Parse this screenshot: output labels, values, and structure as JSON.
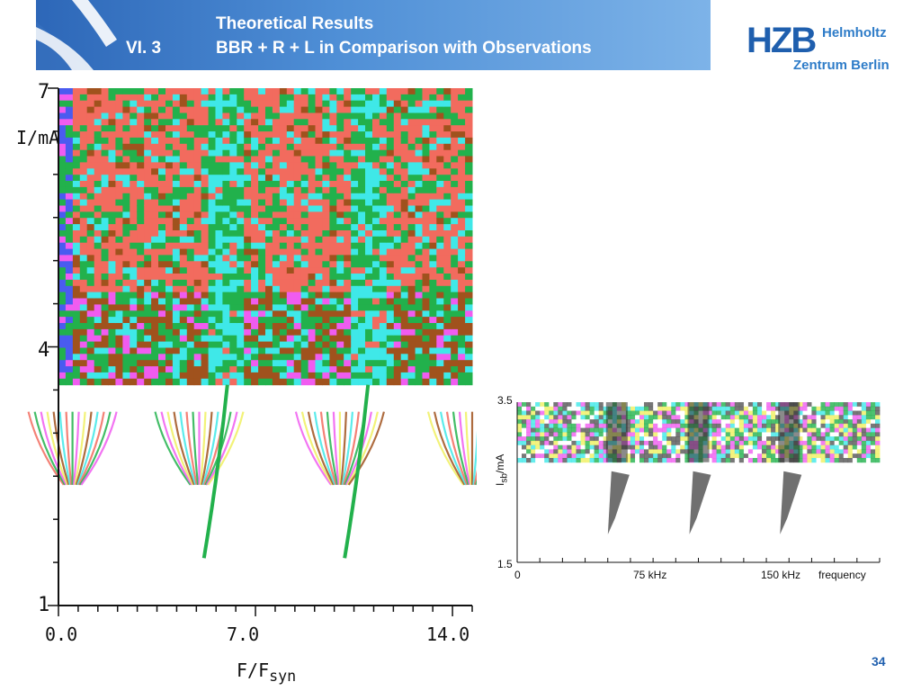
{
  "header": {
    "title_line1": "Theoretical Results",
    "section_number": "VI.  3",
    "title_line2": "BBR + R + L in Comparison with Observations"
  },
  "logo": {
    "abbrev": "HZB",
    "line1": "Helmholtz",
    "line2": "Zentrum Berlin"
  },
  "colors": {
    "header_start": "#2d67b8",
    "header_end": "#7db3e8",
    "logo_dark": "#1f5fae",
    "logo_light": "#2e7cc8",
    "map_red": "#f26b5e",
    "map_green": "#22b14c",
    "map_cyan": "#3fe8e8",
    "map_brown": "#a0521d",
    "map_magenta": "#f05cf0",
    "map_yellow": "#f0f060",
    "map_blue": "#4a5bf0"
  },
  "chart_data": [
    {
      "type": "heatmap",
      "title": "",
      "ylabel": "I/mA",
      "xlabel": "F/F",
      "xlabel_sub": "syn",
      "ylim": [
        1,
        7
      ],
      "xlim": [
        0,
        14.7
      ],
      "yticks": [
        "1",
        "4",
        "7"
      ],
      "xticks": [
        "0.0",
        "7.0",
        "14.0"
      ],
      "ytick_values": [
        1,
        4,
        7
      ],
      "xtick_values": [
        0,
        7,
        14
      ],
      "threshold_current": 3.56,
      "lobe_centers": [
        0.5,
        5.0,
        10.0,
        14.7
      ],
      "filament_centers": [
        6.0,
        11.0
      ],
      "filament_bottom": 1.55,
      "grid": false
    },
    {
      "type": "heatmap",
      "title": "",
      "ylabel": "I",
      "ylabel_sub": "sb",
      "ylabel_unit": "/mA",
      "xlabel": "frequency",
      "ylim": [
        1.5,
        3.5
      ],
      "xlim": [
        0,
        200
      ],
      "yticks": [
        "1.5",
        "3.5"
      ],
      "xticks": [
        "0",
        "75 kHz",
        "150 kHz"
      ],
      "ytick_values": [
        1.5,
        3.5
      ],
      "xtick_values": [
        0,
        75,
        150
      ],
      "threshold_current": 2.75,
      "grid": false
    }
  ],
  "page_number": "34"
}
